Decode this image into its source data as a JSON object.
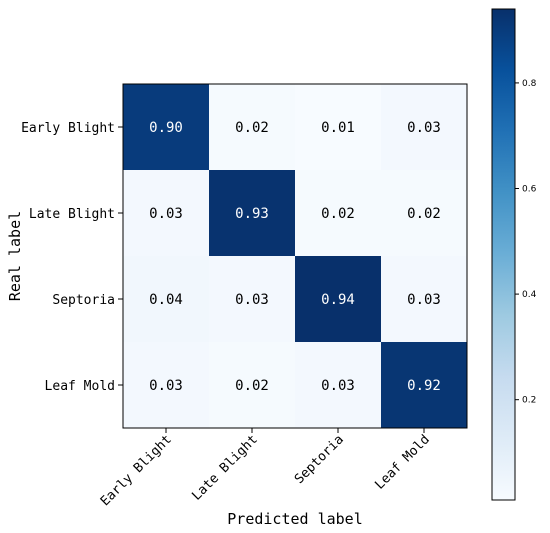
{
  "chart_data": {
    "type": "heatmap",
    "title": "",
    "xlabel": "Predicted label",
    "ylabel": "Real label",
    "x_categories": [
      "Early Blight",
      "Late Blight",
      "Septoria",
      "Leaf Mold"
    ],
    "y_categories": [
      "Early Blight",
      "Late Blight",
      "Septoria",
      "Leaf Mold"
    ],
    "values": [
      [
        0.9,
        0.02,
        0.01,
        0.03
      ],
      [
        0.03,
        0.93,
        0.02,
        0.02
      ],
      [
        0.04,
        0.03,
        0.94,
        0.03
      ],
      [
        0.03,
        0.02,
        0.03,
        0.92
      ]
    ],
    "value_labels": [
      [
        "0.90",
        "0.02",
        "0.01",
        "0.03"
      ],
      [
        "0.03",
        "0.93",
        "0.02",
        "0.02"
      ],
      [
        "0.04",
        "0.03",
        "0.94",
        "0.03"
      ],
      [
        "0.03",
        "0.02",
        "0.03",
        "0.92"
      ]
    ],
    "colormap": "Blues",
    "colorbar": {
      "range": [
        0.01,
        0.94
      ],
      "ticks": [
        0.2,
        0.4,
        0.6,
        0.8
      ],
      "tick_labels": [
        "0.2",
        "0.4",
        "0.6",
        "0.8"
      ]
    },
    "x_tick_rotation": 45,
    "grid": false
  }
}
